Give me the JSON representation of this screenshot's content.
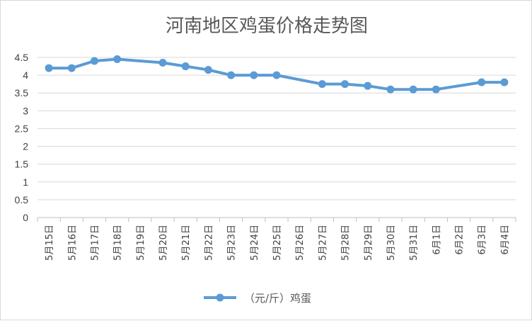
{
  "chart_data": {
    "type": "line",
    "title": "河南地区鸡蛋价格走势图",
    "categories": [
      "5月15日",
      "5月16日",
      "5月17日",
      "5月18日",
      "5月19日",
      "5月20日",
      "5月21日",
      "5月22日",
      "5月23日",
      "5月24日",
      "5月25日",
      "5月26日",
      "5月27日",
      "5月28日",
      "5月29日",
      "5月30日",
      "5月31日",
      "6月1日",
      "6月2日",
      "6月3日",
      "6月4日"
    ],
    "series": [
      {
        "name": "（元/斤）鸡蛋",
        "color": "#5b9bd5",
        "values": [
          4.2,
          4.2,
          4.4,
          4.45,
          null,
          4.35,
          4.25,
          4.15,
          4.0,
          4.0,
          4.0,
          null,
          3.75,
          3.75,
          3.7,
          3.6,
          3.6,
          3.6,
          null,
          3.8,
          3.8
        ]
      }
    ],
    "ylim": [
      0,
      4.5
    ],
    "yticks": [
      "0",
      "0.5",
      "1",
      "1.5",
      "2",
      "2.5",
      "3",
      "3.5",
      "4",
      "4.5"
    ],
    "grid": true,
    "legend": "bottom"
  }
}
